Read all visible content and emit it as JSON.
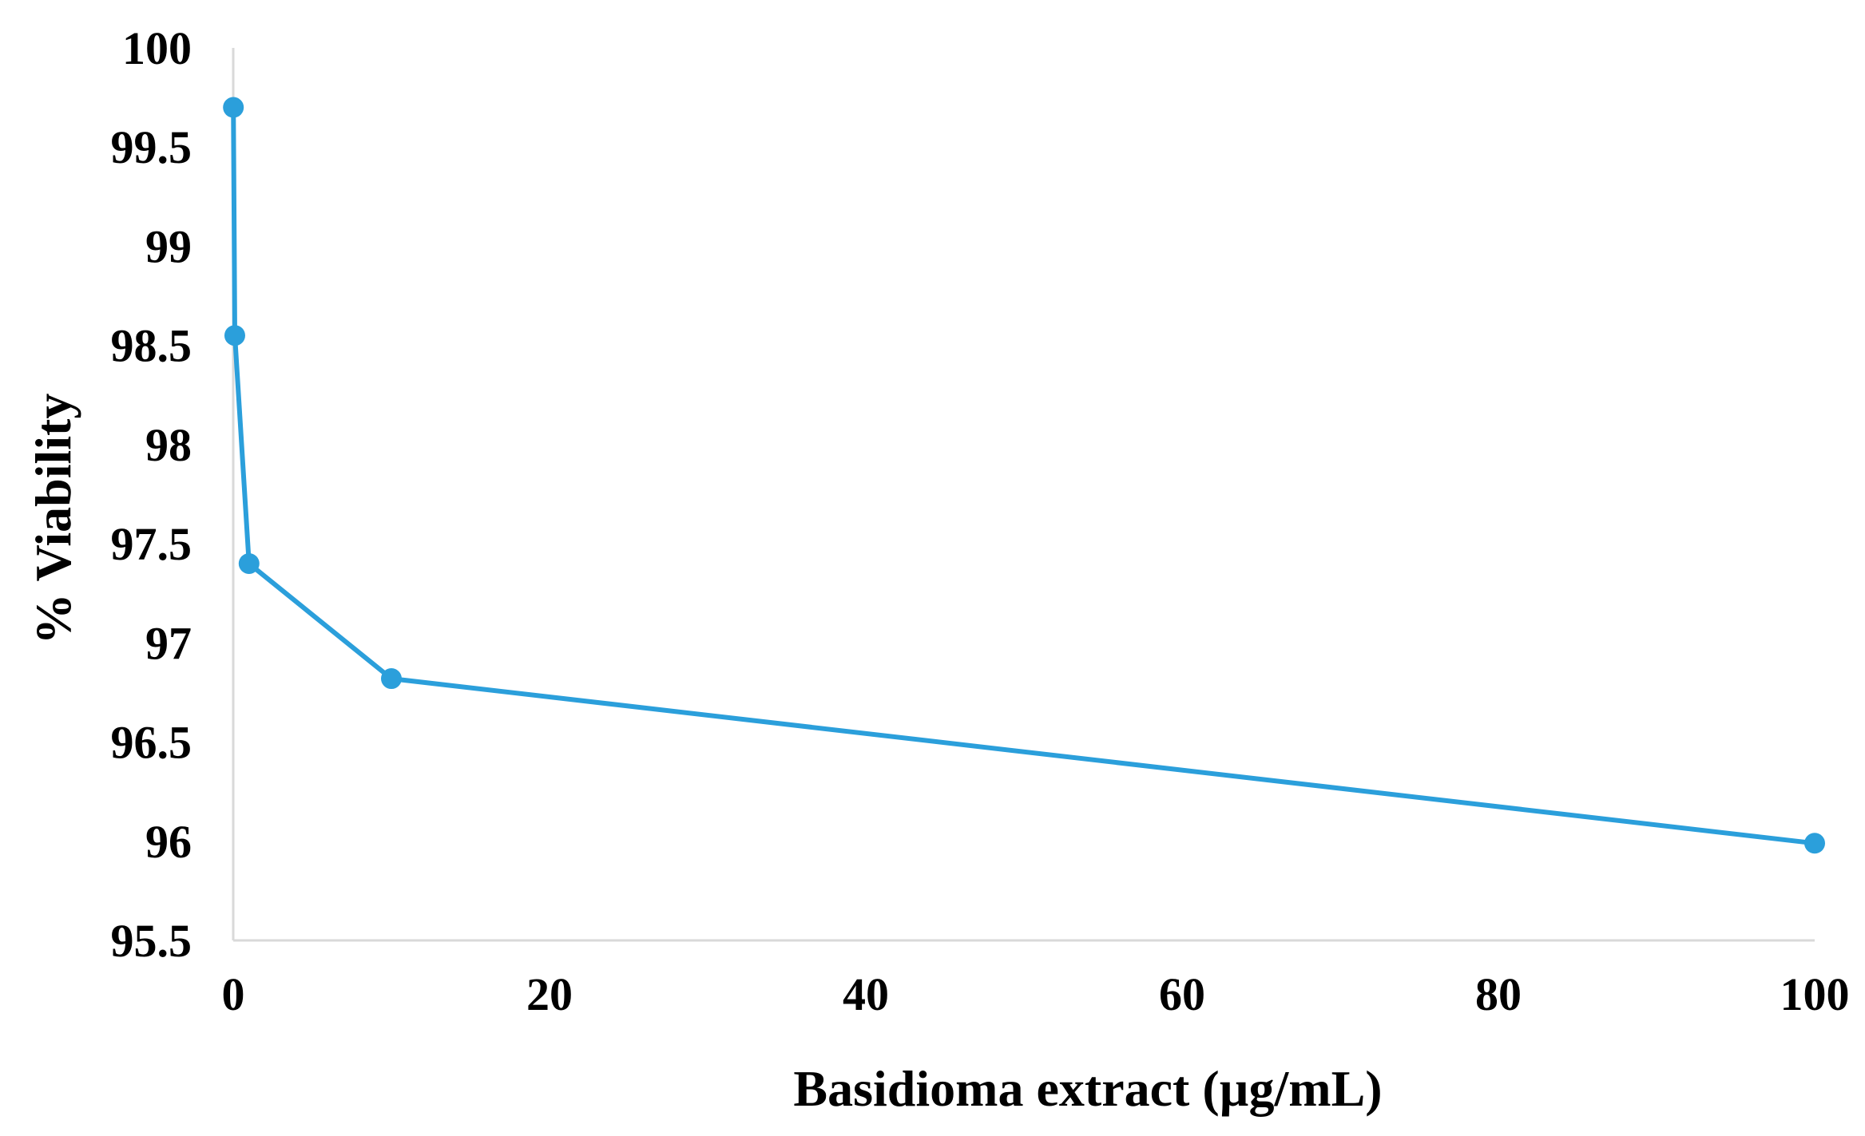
{
  "chart_data": {
    "type": "line",
    "title": "",
    "xlabel": "Basidioma extract (µg/mL)",
    "ylabel": "% Viability",
    "xlim": [
      0,
      100
    ],
    "ylim": [
      95.5,
      100
    ],
    "xticks": [
      "0",
      "20",
      "40",
      "60",
      "80",
      "100"
    ],
    "yticks": [
      "95.5",
      "96",
      "96.5",
      "97",
      "97.5",
      "98",
      "98.5",
      "99",
      "99.5",
      "100"
    ],
    "grid": false,
    "series": [
      {
        "name": "% Viability",
        "color": "#2B9FDB",
        "x": [
          0.01,
          0.1,
          1,
          10,
          100
        ],
        "y": [
          99.7,
          98.55,
          97.4,
          96.82,
          95.99
        ]
      }
    ]
  }
}
